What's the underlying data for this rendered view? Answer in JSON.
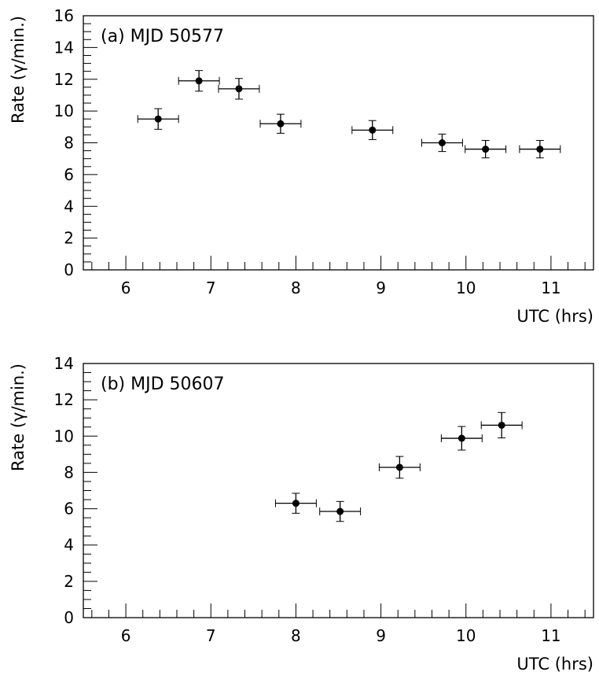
{
  "chart_data": [
    {
      "type": "scatter",
      "annotation": "(a) MJD 50577",
      "xlabel": "UTC (hrs)",
      "ylabel": "Rate (γ/min.)",
      "xlim": [
        5.5,
        11.5
      ],
      "ylim": [
        0,
        16
      ],
      "xticks": [
        "6",
        "7",
        "8",
        "9",
        "10",
        "11"
      ],
      "yticks": [
        "0",
        "2",
        "4",
        "6",
        "8",
        "10",
        "12",
        "14",
        "16"
      ],
      "points": [
        {
          "x": 6.38,
          "y": 9.5,
          "xerr": 0.24,
          "yerr": 0.65
        },
        {
          "x": 6.86,
          "y": 11.9,
          "xerr": 0.24,
          "yerr": 0.65
        },
        {
          "x": 7.33,
          "y": 11.4,
          "xerr": 0.24,
          "yerr": 0.65
        },
        {
          "x": 7.82,
          "y": 9.2,
          "xerr": 0.24,
          "yerr": 0.6
        },
        {
          "x": 8.9,
          "y": 8.8,
          "xerr": 0.24,
          "yerr": 0.6
        },
        {
          "x": 9.72,
          "y": 8.0,
          "xerr": 0.24,
          "yerr": 0.55
        },
        {
          "x": 10.23,
          "y": 7.6,
          "xerr": 0.24,
          "yerr": 0.55
        },
        {
          "x": 10.87,
          "y": 7.6,
          "xerr": 0.24,
          "yerr": 0.55
        }
      ]
    },
    {
      "type": "scatter",
      "annotation": "(b) MJD 50607",
      "xlabel": "UTC (hrs)",
      "ylabel": "Rate (γ/min.)",
      "xlim": [
        5.5,
        11.5
      ],
      "ylim": [
        0,
        14
      ],
      "xticks": [
        "6",
        "7",
        "8",
        "9",
        "10",
        "11"
      ],
      "yticks": [
        "0",
        "2",
        "4",
        "6",
        "8",
        "10",
        "12",
        "14"
      ],
      "points": [
        {
          "x": 8.0,
          "y": 6.3,
          "xerr": 0.24,
          "yerr": 0.55
        },
        {
          "x": 8.52,
          "y": 5.85,
          "xerr": 0.24,
          "yerr": 0.55
        },
        {
          "x": 9.22,
          "y": 8.28,
          "xerr": 0.24,
          "yerr": 0.6
        },
        {
          "x": 9.95,
          "y": 9.88,
          "xerr": 0.24,
          "yerr": 0.65
        },
        {
          "x": 10.42,
          "y": 10.6,
          "xerr": 0.24,
          "yerr": 0.7
        }
      ]
    }
  ]
}
